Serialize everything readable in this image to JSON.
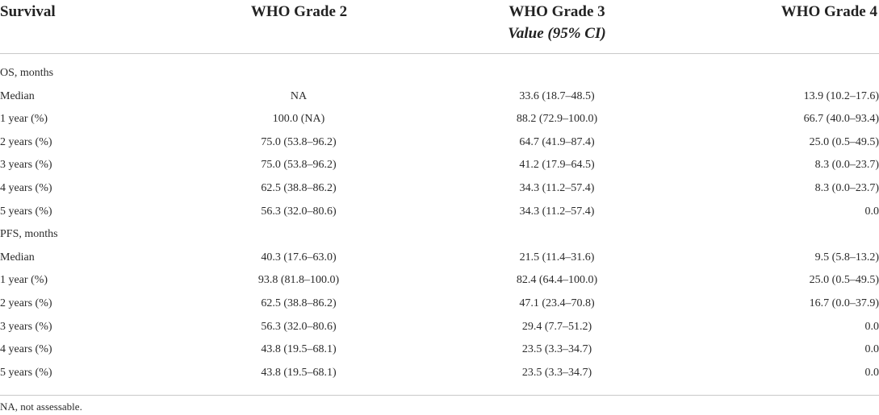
{
  "header": {
    "survival": "Survival",
    "grade2": "WHO Grade 2",
    "grade3": "WHO Grade 3",
    "grade4": "WHO Grade 4",
    "subheader": "Value (95% CI)"
  },
  "rows": [
    {
      "label": "OS, months",
      "g2": "",
      "g3": "",
      "g4": ""
    },
    {
      "label": "Median",
      "g2": "NA",
      "g3": "33.6 (18.7–48.5)",
      "g4": "13.9 (10.2–17.6)"
    },
    {
      "label": "1 year (%)",
      "g2": "100.0 (NA)",
      "g3": "88.2 (72.9–100.0)",
      "g4": "66.7 (40.0–93.4)"
    },
    {
      "label": "2 years (%)",
      "g2": "75.0 (53.8–96.2)",
      "g3": "64.7 (41.9–87.4)",
      "g4": "25.0 (0.5–49.5)"
    },
    {
      "label": "3 years (%)",
      "g2": "75.0 (53.8–96.2)",
      "g3": "41.2 (17.9–64.5)",
      "g4": "8.3 (0.0–23.7)"
    },
    {
      "label": "4 years (%)",
      "g2": "62.5 (38.8–86.2)",
      "g3": "34.3 (11.2–57.4)",
      "g4": "8.3 (0.0–23.7)"
    },
    {
      "label": "5 years (%)",
      "g2": "56.3 (32.0–80.6)",
      "g3": "34.3 (11.2–57.4)",
      "g4": "0.0"
    },
    {
      "label": "PFS, months",
      "g2": "",
      "g3": "",
      "g4": ""
    },
    {
      "label": "Median",
      "g2": "40.3 (17.6–63.0)",
      "g3": "21.5 (11.4–31.6)",
      "g4": "9.5 (5.8–13.2)"
    },
    {
      "label": "1 year (%)",
      "g2": "93.8 (81.8–100.0)",
      "g3": "82.4 (64.4–100.0)",
      "g4": "25.0 (0.5–49.5)"
    },
    {
      "label": "2 years (%)",
      "g2": "62.5 (38.8–86.2)",
      "g3": "47.1 (23.4–70.8)",
      "g4": "16.7 (0.0–37.9)"
    },
    {
      "label": "3 years (%)",
      "g2": "56.3 (32.0–80.6)",
      "g3": "29.4 (7.7–51.2)",
      "g4": "0.0"
    },
    {
      "label": "4 years (%)",
      "g2": "43.8 (19.5–68.1)",
      "g3": "23.5 (3.3–34.7)",
      "g4": "0.0"
    },
    {
      "label": "5 years (%)",
      "g2": "43.8 (19.5–68.1)",
      "g3": "23.5 (3.3–34.7)",
      "g4": "0.0"
    }
  ],
  "footnote": "NA, not assessable."
}
